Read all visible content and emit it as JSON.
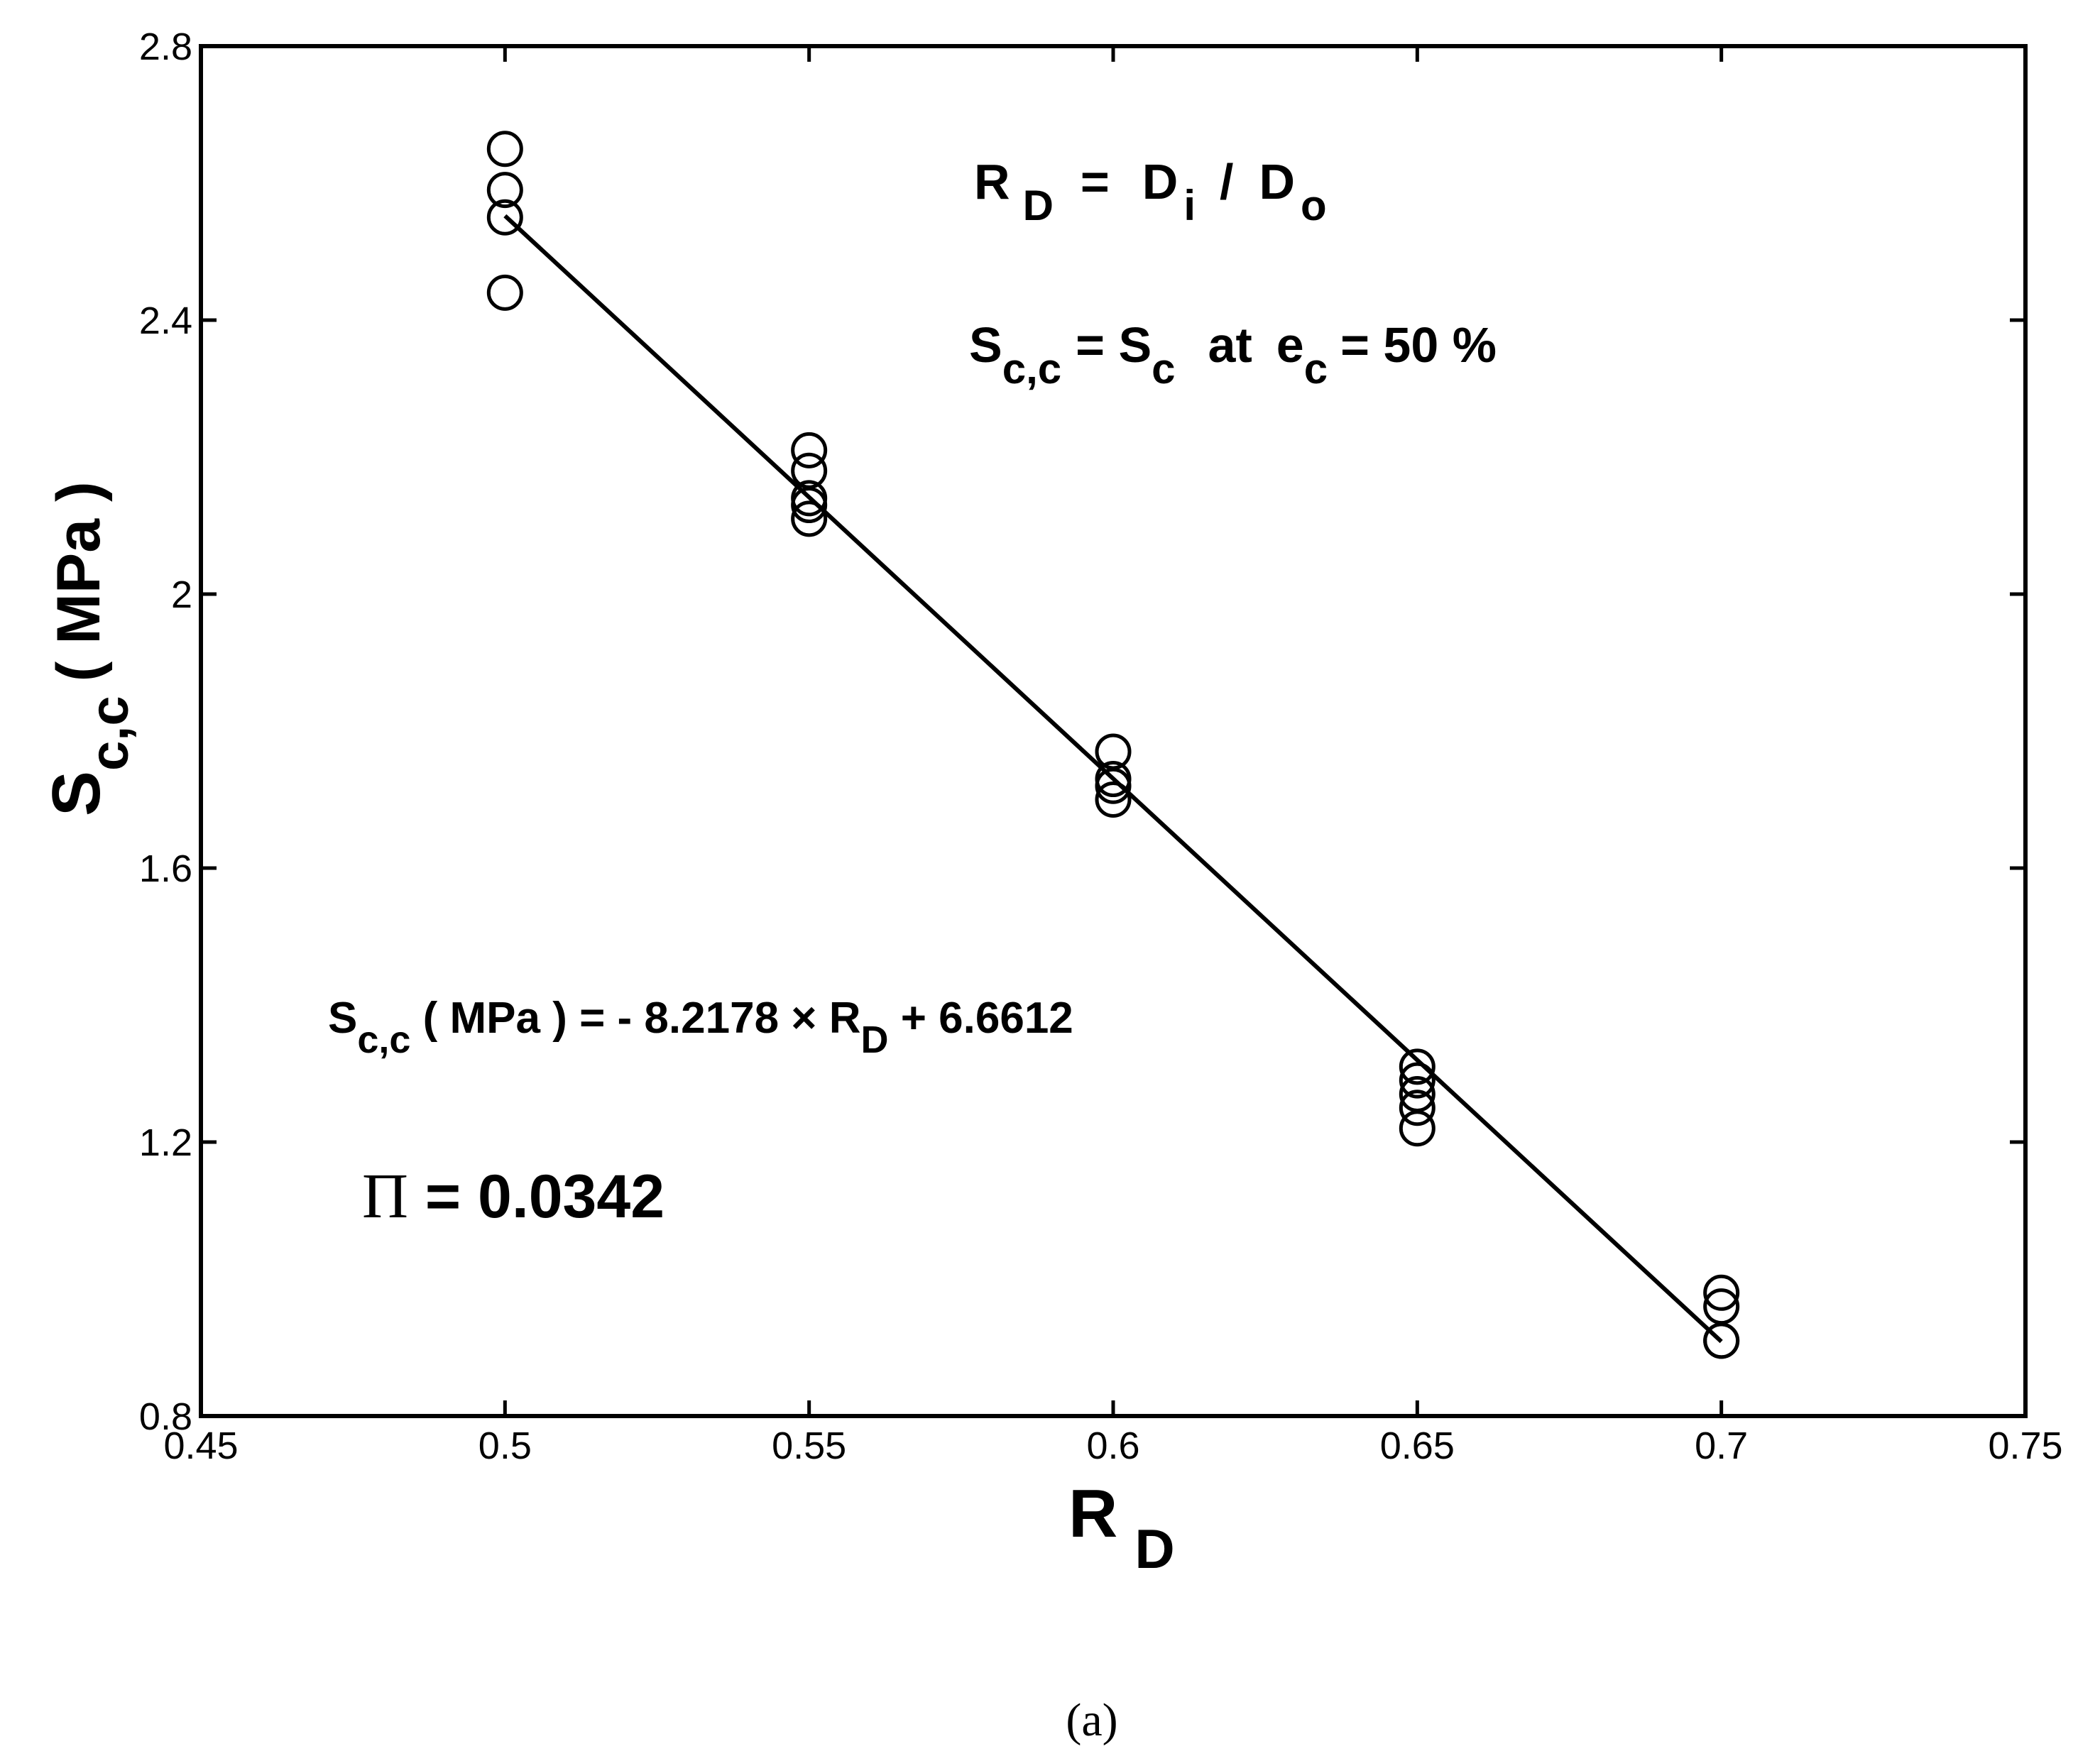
{
  "chart_data": {
    "type": "scatter",
    "xlabel": {
      "main": "R",
      "sub": "D"
    },
    "ylabel": {
      "main": "S",
      "sub": "c,c",
      "unit": "( MPa )"
    },
    "xlim": [
      0.45,
      0.75
    ],
    "ylim": [
      0.8,
      2.8
    ],
    "x_ticks": [
      0.45,
      0.5,
      0.55,
      0.6,
      0.65,
      0.7,
      0.75
    ],
    "x_tick_labels": [
      "0.45",
      "0.5",
      "0.55",
      "0.6",
      "0.65",
      "0.7",
      "0.75"
    ],
    "y_ticks": [
      0.8,
      1.2,
      1.6,
      2.0,
      2.4,
      2.8
    ],
    "y_tick_labels": [
      "0.8",
      "1.2",
      "1.6",
      "2",
      "2.4",
      "2.8"
    ],
    "grid": false,
    "marker": "open-circle",
    "points": [
      [
        0.5,
        2.65
      ],
      [
        0.5,
        2.59
      ],
      [
        0.5,
        2.55
      ],
      [
        0.5,
        2.44
      ],
      [
        0.55,
        2.21
      ],
      [
        0.55,
        2.18
      ],
      [
        0.55,
        2.14
      ],
      [
        0.55,
        2.13
      ],
      [
        0.55,
        2.11
      ],
      [
        0.6,
        1.77
      ],
      [
        0.6,
        1.73
      ],
      [
        0.6,
        1.72
      ],
      [
        0.6,
        1.7
      ],
      [
        0.65,
        1.31
      ],
      [
        0.65,
        1.29
      ],
      [
        0.65,
        1.27
      ],
      [
        0.65,
        1.25
      ],
      [
        0.65,
        1.22
      ],
      [
        0.7,
        0.98
      ],
      [
        0.7,
        0.96
      ],
      [
        0.7,
        0.91
      ],
      [
        0.7,
        0.91
      ]
    ],
    "fit_line": {
      "slope": -8.2178,
      "intercept": 6.6612,
      "x_range": [
        0.5,
        0.7
      ]
    }
  },
  "annotations": {
    "definition": {
      "lhs": "R",
      "lhs_sub": "D",
      "eq": "=",
      "num": "D",
      "num_sub": "i",
      "div": "/",
      "den": "D",
      "den_sub": "o"
    },
    "condition": {
      "lhs": "S",
      "lhs_sub": "c,c",
      "eq": "= S",
      "eq_sub": "c",
      "at": "at",
      "e": "e",
      "e_sub": "c",
      "value": "= 50 %"
    },
    "equation": {
      "lhs": "S",
      "lhs_sub": "c,c",
      "rest": " ( MPa ) = - 8.2178 × R",
      "rest_sub": "D",
      "tail": " + 6.6612"
    },
    "pi": {
      "symbol": "Π",
      "value": " = 0.0342"
    }
  },
  "panel_label": "(a)"
}
